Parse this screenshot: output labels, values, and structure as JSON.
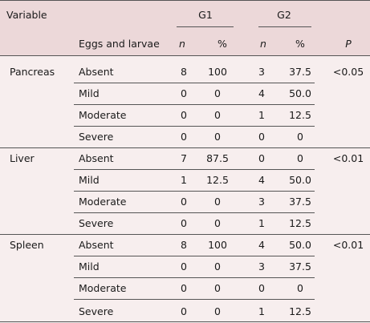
{
  "header": {
    "variable": "Variable",
    "g1": "G1",
    "g2": "G2",
    "eggs_larvae": "Eggs and larvae",
    "n1": "n",
    "pct1": "%",
    "n2": "n",
    "pct2": "%",
    "p": "P"
  },
  "groups": [
    {
      "organ": "Pancreas",
      "p": "<0.05",
      "rows": [
        {
          "level": "Absent",
          "n1": "8",
          "p1": "100",
          "n2": "3",
          "p2": "37.5"
        },
        {
          "level": "Mild",
          "n1": "0",
          "p1": "0",
          "n2": "4",
          "p2": "50.0"
        },
        {
          "level": "Moderate",
          "n1": "0",
          "p1": "0",
          "n2": "1",
          "p2": "12.5"
        },
        {
          "level": "Severe",
          "n1": "0",
          "p1": "0",
          "n2": "0",
          "p2": "0"
        }
      ]
    },
    {
      "organ": "Liver",
      "p": "<0.01",
      "rows": [
        {
          "level": "Absent",
          "n1": "7",
          "p1": "87.5",
          "n2": "0",
          "p2": "0"
        },
        {
          "level": "Mild",
          "n1": "1",
          "p1": "12.5",
          "n2": "4",
          "p2": "50.0"
        },
        {
          "level": "Moderate",
          "n1": "0",
          "p1": "0",
          "n2": "3",
          "p2": "37.5"
        },
        {
          "level": "Severe",
          "n1": "0",
          "p1": "0",
          "n2": "1",
          "p2": "12.5"
        }
      ]
    },
    {
      "organ": "Spleen",
      "p": "<0.01",
      "rows": [
        {
          "level": "Absent",
          "n1": "8",
          "p1": "100",
          "n2": "4",
          "p2": "50.0"
        },
        {
          "level": "Mild",
          "n1": "0",
          "p1": "0",
          "n2": "3",
          "p2": "37.5"
        },
        {
          "level": "Moderate",
          "n1": "0",
          "p1": "0",
          "n2": "0",
          "p2": "0"
        },
        {
          "level": "Severe",
          "n1": "0",
          "p1": "0",
          "n2": "1",
          "p2": "12.5"
        }
      ]
    }
  ]
}
